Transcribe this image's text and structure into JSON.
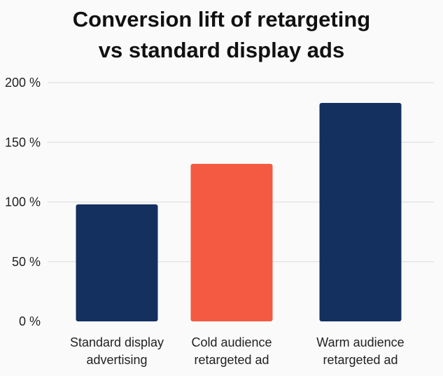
{
  "chart_data": {
    "type": "bar",
    "title_lines": [
      "Conversion lift of retargeting",
      "vs standard display ads"
    ],
    "categories": [
      [
        "Standard display",
        "advertising"
      ],
      [
        "Cold audience",
        "retargeted ad"
      ],
      [
        "Warm audience",
        "retargeted ad"
      ]
    ],
    "values": [
      98,
      132,
      183
    ],
    "colors": [
      "#13305f",
      "#f45a42",
      "#13305f"
    ],
    "ylim": [
      0,
      200
    ],
    "yticks": [
      0,
      50,
      100,
      150,
      200
    ],
    "ytick_labels": [
      "0 %",
      "50 %",
      "100 %",
      "150 %",
      "200 %"
    ],
    "xlabel": "",
    "ylabel": "",
    "grid": true
  }
}
